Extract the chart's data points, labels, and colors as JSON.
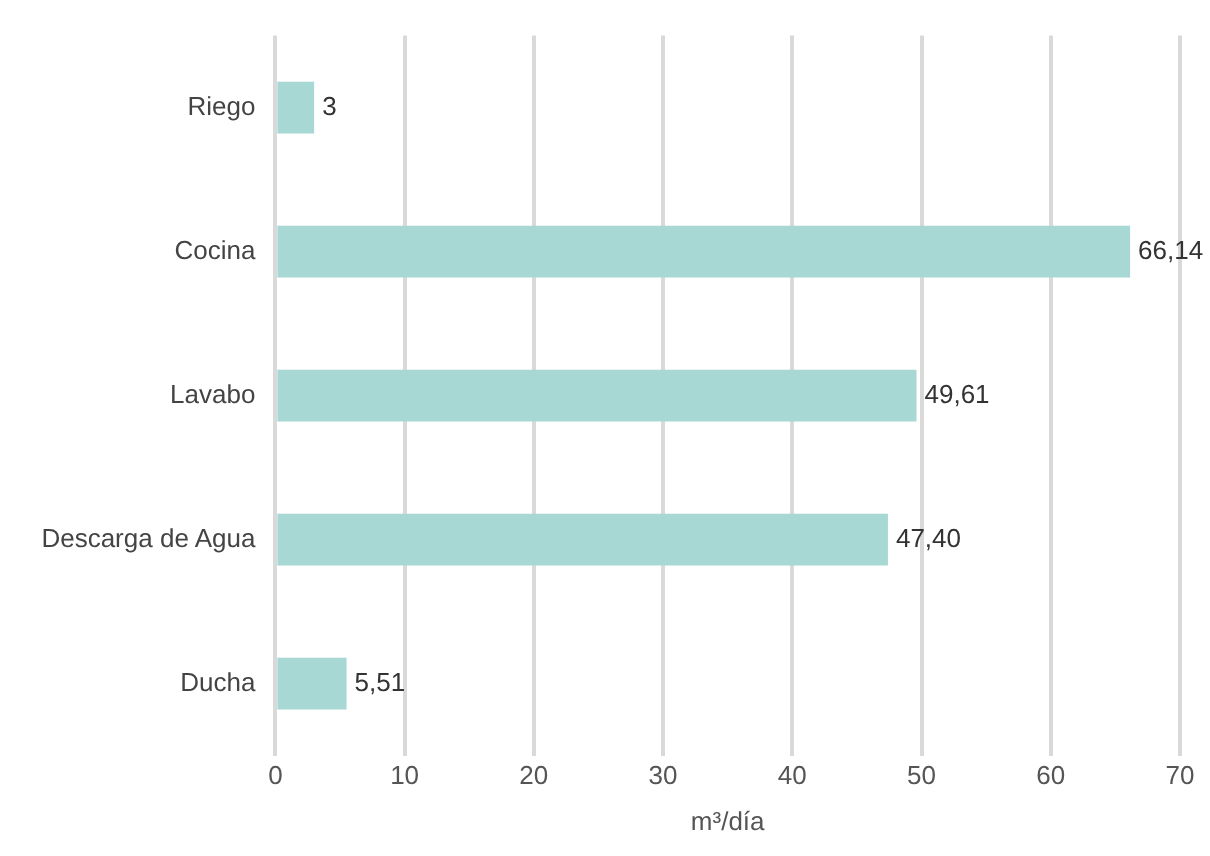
{
  "chart_data": {
    "type": "bar",
    "orientation": "horizontal",
    "categories": [
      "Riego",
      "Cocina",
      "Lavabo",
      "Descarga de Agua",
      "Ducha"
    ],
    "values": [
      3,
      66.14,
      49.61,
      47.4,
      5.51
    ],
    "value_labels": [
      "3",
      "66,14",
      "49,61",
      "47,40",
      "5,51"
    ],
    "color": "#a8d8d3",
    "xlabel": "m³/día",
    "xlim": [
      0,
      70
    ],
    "xticks": [
      0,
      10,
      20,
      30,
      40,
      50,
      60,
      70
    ],
    "grid": "x",
    "legend": false
  }
}
